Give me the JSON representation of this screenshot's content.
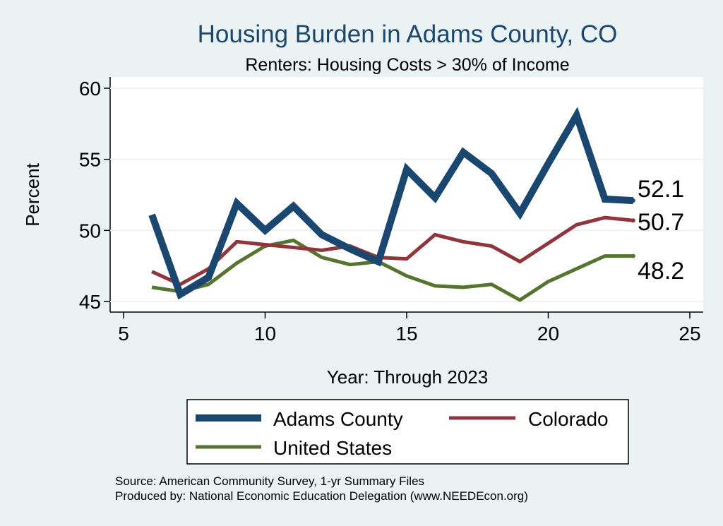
{
  "chart_data": {
    "type": "line",
    "title": "Housing Burden in Adams County, CO",
    "subtitle": "Renters: Housing Costs > 30% of Income",
    "xlabel": "Year: Through 2023",
    "ylabel": "Percent",
    "xlim": [
      5,
      25
    ],
    "ylim": [
      45,
      60
    ],
    "x_ticks": [
      5,
      10,
      15,
      20,
      25
    ],
    "y_ticks": [
      45,
      50,
      55,
      60
    ],
    "grid": true,
    "legend_position": "bottom",
    "x": [
      6,
      7,
      8,
      9,
      10,
      11,
      12,
      13,
      14,
      15,
      16,
      17,
      18,
      19,
      20,
      21,
      22,
      23
    ],
    "series": [
      {
        "name": "Adams County",
        "color": "#1a476f",
        "values": [
          51.1,
          45.5,
          46.7,
          51.9,
          50.0,
          51.7,
          49.7,
          48.7,
          47.8,
          54.3,
          52.3,
          55.5,
          54.0,
          51.2,
          54.7,
          58.1,
          52.2,
          52.1
        ],
        "end_label": "52.1"
      },
      {
        "name": "Colorado",
        "color": "#90353b",
        "values": [
          47.1,
          46.2,
          47.3,
          49.2,
          49.0,
          48.8,
          48.6,
          48.9,
          48.1,
          48.0,
          49.7,
          49.2,
          48.9,
          47.8,
          49.1,
          50.4,
          50.9,
          50.7
        ],
        "end_label": "50.7"
      },
      {
        "name": "United States",
        "color": "#55752f",
        "values": [
          46.0,
          45.7,
          46.2,
          47.7,
          48.9,
          49.3,
          48.1,
          47.6,
          47.8,
          46.8,
          46.1,
          46.0,
          46.2,
          45.1,
          46.4,
          47.3,
          48.2,
          48.2
        ],
        "end_label": "48.2"
      }
    ],
    "source_note": "Source: American Community Survey, 1-yr Summary Files",
    "producer_note": "Produced by: National Economic Education Delegation (www.NEEDEcon.org)"
  }
}
